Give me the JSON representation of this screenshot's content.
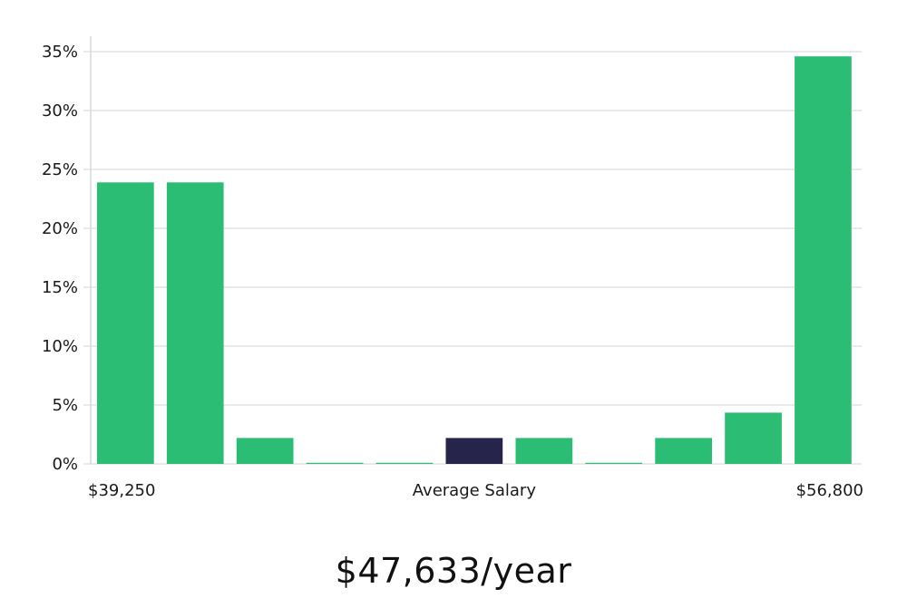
{
  "headline": "$47,633/year",
  "colors": {
    "bar": "#2bbd74",
    "highlight": "#27244b",
    "grid": "#e3e3e3",
    "text": "#1a1a1a"
  },
  "chart_data": {
    "type": "bar",
    "title": "",
    "xlabel": "Average Salary",
    "ylabel": "",
    "x_min_label": "$39,250",
    "x_max_label": "$56,800",
    "ylim": [
      0,
      35
    ],
    "yticks": [
      0,
      5,
      10,
      15,
      20,
      25,
      30,
      35
    ],
    "ytick_labels": [
      "0%",
      "5%",
      "10%",
      "15%",
      "20%",
      "25%",
      "30%",
      "35%"
    ],
    "grid": true,
    "highlight_index": 5,
    "values": [
      23.9,
      23.9,
      2.2,
      0,
      0,
      2.2,
      2.2,
      0,
      2.2,
      4.35,
      34.6
    ]
  }
}
